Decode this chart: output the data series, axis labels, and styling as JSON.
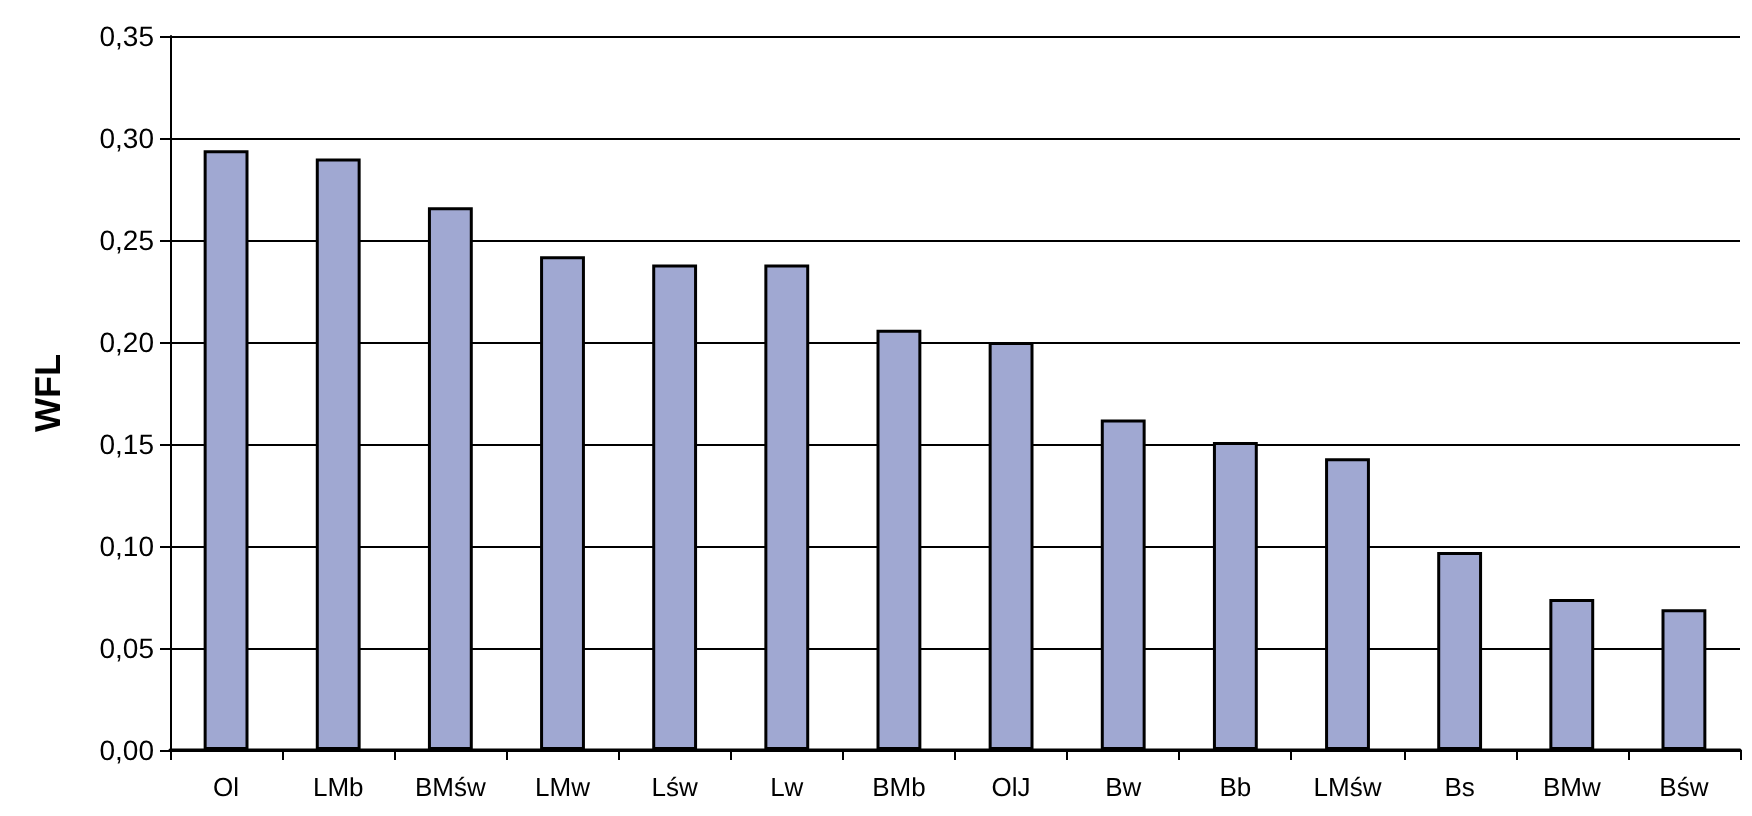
{
  "chart_data": {
    "type": "bar",
    "ylabel": "WFL",
    "categories": [
      "Ol",
      "LMb",
      "BMśw",
      "LMw",
      "Lśw",
      "Lw",
      "BMb",
      "OlJ",
      "Bw",
      "Bb",
      "LMśw",
      "Bs",
      "BMw",
      "Bśw"
    ],
    "values": [
      0.294,
      0.29,
      0.266,
      0.242,
      0.238,
      0.238,
      0.206,
      0.2,
      0.162,
      0.151,
      0.143,
      0.097,
      0.074,
      0.069
    ],
    "color": "#a0a8d2",
    "ylim": [
      0,
      0.35
    ],
    "yticks": [
      {
        "value": 0,
        "label": "0,00"
      },
      {
        "value": 0.05,
        "label": "0,05"
      },
      {
        "value": 0.1,
        "label": "0,10"
      },
      {
        "value": 0.15,
        "label": "0,15"
      },
      {
        "value": 0.2,
        "label": "0,20"
      },
      {
        "value": 0.25,
        "label": "0,25"
      },
      {
        "value": 0.3,
        "label": "0,30"
      },
      {
        "value": 0.35,
        "label": "0,35"
      }
    ],
    "grid": "y"
  }
}
